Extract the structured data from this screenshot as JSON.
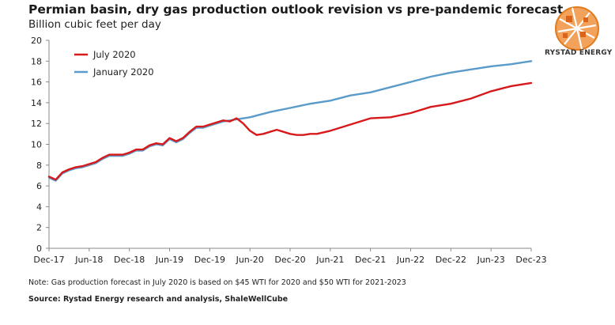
{
  "header": {
    "title": "Permian basin, dry gas production outlook revision vs pre-pandemic forecast",
    "subtitle": "Billion cubic feet per day"
  },
  "logo": {
    "text": "RYSTAD ENERGY",
    "icon": "rystad-energy-logo-icon"
  },
  "footer": {
    "note": "Note: Gas production forecast in July 2020 is based on $45 WTI for 2020 and $50 WTI for 2021-2023",
    "source": "Source: Rystad Energy research and analysis, ShaleWellCube"
  },
  "chart_data": {
    "type": "line",
    "title": "Permian basin, dry gas production outlook revision vs pre-pandemic forecast",
    "ylabel": "Billion cubic feet per day",
    "xlabel": "",
    "ylim": [
      0,
      20
    ],
    "yticks": [
      0,
      2,
      4,
      6,
      8,
      10,
      12,
      14,
      16,
      18,
      20
    ],
    "xlim": [
      "2017-12",
      "2023-12"
    ],
    "xtick_labels": [
      "Dec-17",
      "Jun-18",
      "Dec-18",
      "Jun-19",
      "Dec-19",
      "Jun-20",
      "Dec-20",
      "Jun-21",
      "Dec-21",
      "Jun-22",
      "Dec-22",
      "Jun-23",
      "Dec-23"
    ],
    "grid": false,
    "legend_position": "top-left",
    "series": [
      {
        "name": "July 2020",
        "color": "#d7191c",
        "points": [
          [
            "2017-12",
            6.9
          ],
          [
            "2018-01",
            6.6
          ],
          [
            "2018-02",
            7.3
          ],
          [
            "2018-03",
            7.6
          ],
          [
            "2018-04",
            7.8
          ],
          [
            "2018-05",
            7.9
          ],
          [
            "2018-06",
            8.1
          ],
          [
            "2018-07",
            8.3
          ],
          [
            "2018-08",
            8.7
          ],
          [
            "2018-09",
            9.0
          ],
          [
            "2018-10",
            9.0
          ],
          [
            "2018-11",
            9.0
          ],
          [
            "2018-12",
            9.2
          ],
          [
            "2019-01",
            9.5
          ],
          [
            "2019-02",
            9.5
          ],
          [
            "2019-03",
            9.9
          ],
          [
            "2019-04",
            10.1
          ],
          [
            "2019-05",
            10.0
          ],
          [
            "2019-06",
            10.6
          ],
          [
            "2019-07",
            10.3
          ],
          [
            "2019-08",
            10.6
          ],
          [
            "2019-09",
            11.2
          ],
          [
            "2019-10",
            11.7
          ],
          [
            "2019-11",
            11.7
          ],
          [
            "2019-12",
            11.9
          ],
          [
            "2020-01",
            12.1
          ],
          [
            "2020-02",
            12.3
          ],
          [
            "2020-03",
            12.2
          ],
          [
            "2020-04",
            12.5
          ],
          [
            "2020-05",
            12.0
          ],
          [
            "2020-06",
            11.3
          ],
          [
            "2020-07",
            10.9
          ],
          [
            "2020-08",
            11.0
          ],
          [
            "2020-09",
            11.2
          ],
          [
            "2020-10",
            11.4
          ],
          [
            "2020-11",
            11.2
          ],
          [
            "2020-12",
            11.0
          ],
          [
            "2021-01",
            10.9
          ],
          [
            "2021-02",
            10.9
          ],
          [
            "2021-03",
            11.0
          ],
          [
            "2021-04",
            11.0
          ],
          [
            "2021-06",
            11.3
          ],
          [
            "2021-09",
            11.9
          ],
          [
            "2021-12",
            12.5
          ],
          [
            "2022-03",
            12.6
          ],
          [
            "2022-06",
            13.0
          ],
          [
            "2022-09",
            13.6
          ],
          [
            "2022-12",
            13.9
          ],
          [
            "2023-03",
            14.4
          ],
          [
            "2023-06",
            15.1
          ],
          [
            "2023-09",
            15.6
          ],
          [
            "2023-12",
            15.9
          ]
        ]
      },
      {
        "name": "January 2020",
        "color": "#5a9bc9",
        "points": [
          [
            "2017-12",
            6.8
          ],
          [
            "2018-01",
            6.5
          ],
          [
            "2018-02",
            7.2
          ],
          [
            "2018-03",
            7.5
          ],
          [
            "2018-04",
            7.7
          ],
          [
            "2018-05",
            7.8
          ],
          [
            "2018-06",
            8.0
          ],
          [
            "2018-07",
            8.2
          ],
          [
            "2018-08",
            8.6
          ],
          [
            "2018-09",
            8.9
          ],
          [
            "2018-10",
            8.9
          ],
          [
            "2018-11",
            8.9
          ],
          [
            "2018-12",
            9.1
          ],
          [
            "2019-01",
            9.4
          ],
          [
            "2019-02",
            9.4
          ],
          [
            "2019-03",
            9.8
          ],
          [
            "2019-04",
            10.0
          ],
          [
            "2019-05",
            9.9
          ],
          [
            "2019-06",
            10.5
          ],
          [
            "2019-07",
            10.2
          ],
          [
            "2019-08",
            10.5
          ],
          [
            "2019-09",
            11.1
          ],
          [
            "2019-10",
            11.6
          ],
          [
            "2019-11",
            11.6
          ],
          [
            "2019-12",
            11.8
          ],
          [
            "2020-01",
            12.0
          ],
          [
            "2020-02",
            12.2
          ],
          [
            "2020-03",
            12.3
          ],
          [
            "2020-04",
            12.4
          ],
          [
            "2020-06",
            12.6
          ],
          [
            "2020-09",
            13.1
          ],
          [
            "2020-12",
            13.5
          ],
          [
            "2021-03",
            13.9
          ],
          [
            "2021-06",
            14.2
          ],
          [
            "2021-09",
            14.7
          ],
          [
            "2021-12",
            15.0
          ],
          [
            "2022-03",
            15.5
          ],
          [
            "2022-06",
            16.0
          ],
          [
            "2022-09",
            16.5
          ],
          [
            "2022-12",
            16.9
          ],
          [
            "2023-03",
            17.2
          ],
          [
            "2023-06",
            17.5
          ],
          [
            "2023-09",
            17.7
          ],
          [
            "2023-12",
            18.0
          ]
        ]
      }
    ]
  }
}
